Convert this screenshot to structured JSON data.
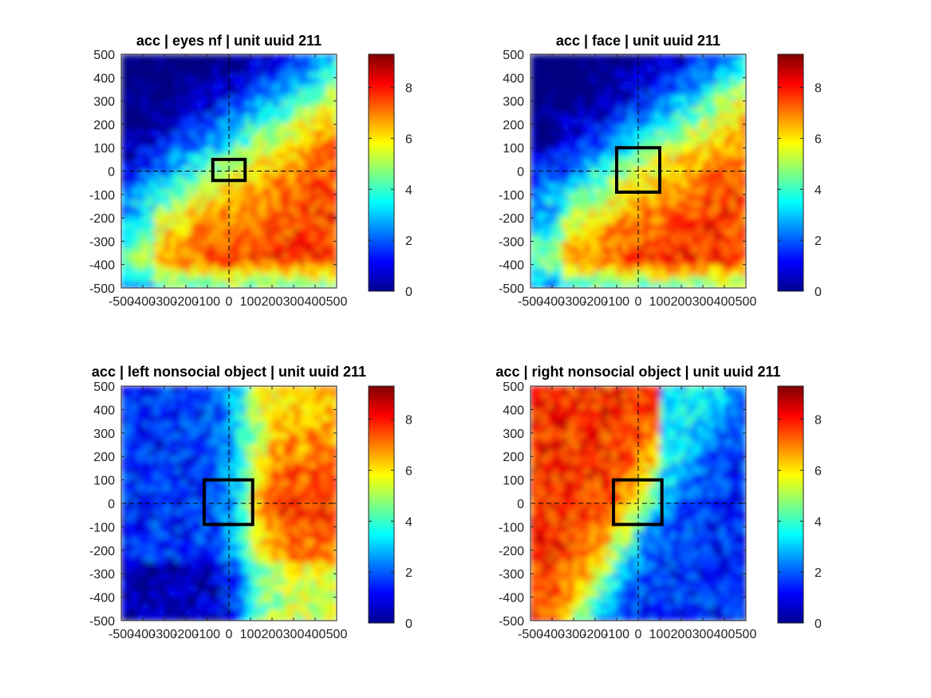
{
  "chart_data": [
    {
      "type": "heatmap",
      "title": "acc | eyes nf | unit uuid  211",
      "xlim": [
        -500,
        500
      ],
      "ylim": [
        -500,
        500
      ],
      "xticks": [
        "-500",
        "-400",
        "-300",
        "-200",
        "-100",
        "0",
        "100",
        "200",
        "300",
        "400",
        "500"
      ],
      "yticks": [
        "500",
        "400",
        "300",
        "200",
        "100",
        "0",
        "-100",
        "-200",
        "-300",
        "-400",
        "-500"
      ],
      "colorbar": {
        "range": [
          0,
          9.3
        ],
        "ticks": [
          "0",
          "2",
          "4",
          "6",
          "8"
        ]
      },
      "crosshair": [
        0,
        0
      ],
      "roi_box": {
        "x": [
          -75,
          75
        ],
        "y": [
          -40,
          50
        ]
      },
      "pattern": "lower-right-high"
    },
    {
      "type": "heatmap",
      "title": "acc | face | unit uuid  211",
      "xlim": [
        -500,
        500
      ],
      "ylim": [
        -500,
        500
      ],
      "xticks": [
        "-500",
        "-400",
        "-300",
        "-200",
        "-100",
        "0",
        "100",
        "200",
        "300",
        "400",
        "500"
      ],
      "yticks": [
        "500",
        "400",
        "300",
        "200",
        "100",
        "0",
        "-100",
        "-200",
        "-300",
        "-400",
        "-500"
      ],
      "colorbar": {
        "range": [
          0,
          9.3
        ],
        "ticks": [
          "0",
          "2",
          "4",
          "6",
          "8"
        ]
      },
      "crosshair": [
        0,
        0
      ],
      "roi_box": {
        "x": [
          -100,
          100
        ],
        "y": [
          -90,
          100
        ]
      },
      "pattern": "lower-right-high"
    },
    {
      "type": "heatmap",
      "title": "acc | left nonsocial object | unit uuid  211",
      "xlim": [
        -500,
        500
      ],
      "ylim": [
        -500,
        500
      ],
      "xticks": [
        "-500",
        "-400",
        "-300",
        "-200",
        "-100",
        "0",
        "100",
        "200",
        "300",
        "400",
        "500"
      ],
      "yticks": [
        "500",
        "400",
        "300",
        "200",
        "100",
        "0",
        "-100",
        "-200",
        "-300",
        "-400",
        "-500"
      ],
      "colorbar": {
        "range": [
          0,
          9.3
        ],
        "ticks": [
          "0",
          "2",
          "4",
          "6",
          "8"
        ]
      },
      "crosshair": [
        0,
        0
      ],
      "roi_box": {
        "x": [
          -115,
          110
        ],
        "y": [
          -90,
          100
        ]
      },
      "pattern": "right-band"
    },
    {
      "type": "heatmap",
      "title": "acc | right nonsocial object | unit uuid  211",
      "xlim": [
        -500,
        500
      ],
      "ylim": [
        -500,
        500
      ],
      "xticks": [
        "-500",
        "-400",
        "-300",
        "-200",
        "-100",
        "0",
        "100",
        "200",
        "300",
        "400",
        "500"
      ],
      "yticks": [
        "500",
        "400",
        "300",
        "200",
        "100",
        "0",
        "-100",
        "-200",
        "-300",
        "-400",
        "-500"
      ],
      "colorbar": {
        "range": [
          0,
          9.3
        ],
        "ticks": [
          "0",
          "2",
          "4",
          "6",
          "8"
        ]
      },
      "crosshair": [
        0,
        0
      ],
      "roi_box": {
        "x": [
          -115,
          110
        ],
        "y": [
          -90,
          100
        ]
      },
      "pattern": "upper-left-high"
    }
  ]
}
